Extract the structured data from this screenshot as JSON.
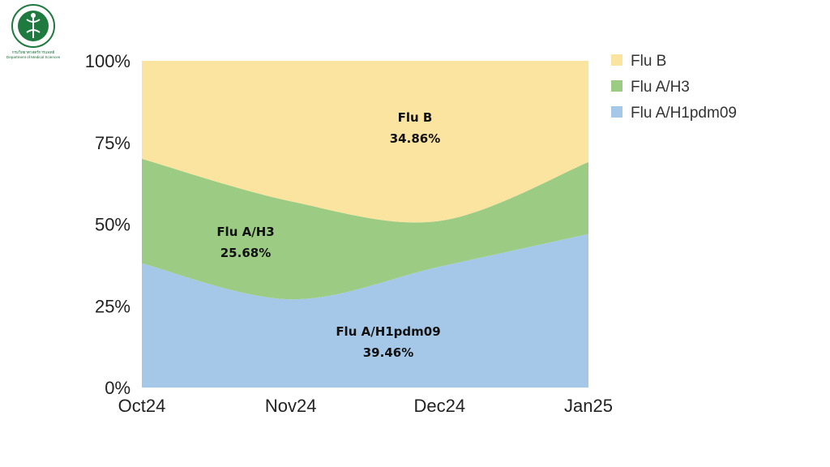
{
  "logo": {
    "name_th": "กรมวิทยาศาสตร์การแพทย์",
    "name_en": "Department of Medical Sciences",
    "seal_ring_text": "MINISTRY OF PUBLIC HEALTH",
    "seal_color": "#1f7a3f"
  },
  "chart_data": {
    "type": "area",
    "stacked": "percent",
    "smooth": true,
    "categories": [
      "Oct24",
      "Nov24",
      "Dec24",
      "Jan25"
    ],
    "yticks": [
      "0%",
      "25%",
      "50%",
      "75%",
      "100%"
    ],
    "ylim": [
      0,
      100
    ],
    "grid": false,
    "legend_position": "right",
    "series": [
      {
        "name": "Flu A/H1pdm09",
        "color": "#a6c8e8",
        "values": [
          38,
          27,
          37,
          47
        ]
      },
      {
        "name": "Flu A/H3",
        "color": "#9ccc84",
        "values": [
          32,
          30,
          14,
          22
        ]
      },
      {
        "name": "Flu B",
        "color": "#fbe3a0",
        "values": [
          30,
          43,
          49,
          31
        ]
      }
    ],
    "legend": [
      "Flu B",
      "Flu A/H3",
      "Flu A/H1pdm09"
    ],
    "annotations": [
      {
        "series": "Flu B",
        "name": "Flu B",
        "percent": "34.86%"
      },
      {
        "series": "Flu A/H3",
        "name": "Flu A/H3",
        "percent": "25.68%"
      },
      {
        "series": "Flu A/H1pdm09",
        "name": "Flu A/H1pdm09",
        "percent": "39.46%"
      }
    ]
  }
}
